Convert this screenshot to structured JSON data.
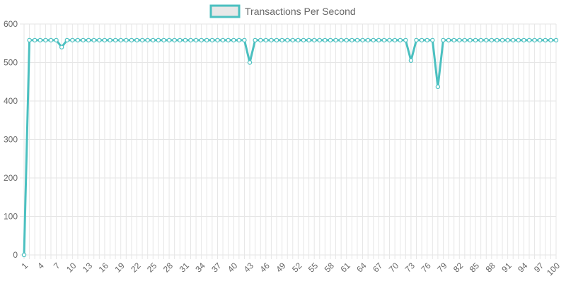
{
  "colors": {
    "line": "#4bc0c0",
    "legend_fill": "#e8e8e8",
    "grid": "#e6e6e6",
    "text": "#666666"
  },
  "chart_data": {
    "type": "line",
    "title": "",
    "xlabel": "",
    "ylabel": "",
    "x": [
      1,
      2,
      3,
      4,
      5,
      6,
      7,
      8,
      9,
      10,
      11,
      12,
      13,
      14,
      15,
      16,
      17,
      18,
      19,
      20,
      21,
      22,
      23,
      24,
      25,
      26,
      27,
      28,
      29,
      30,
      31,
      32,
      33,
      34,
      35,
      36,
      37,
      38,
      39,
      40,
      41,
      42,
      43,
      44,
      45,
      46,
      47,
      48,
      49,
      50,
      51,
      52,
      53,
      54,
      55,
      56,
      57,
      58,
      59,
      60,
      61,
      62,
      63,
      64,
      65,
      66,
      67,
      68,
      69,
      70,
      71,
      72,
      73,
      74,
      75,
      76,
      77,
      78,
      79,
      80,
      81,
      82,
      83,
      84,
      85,
      86,
      87,
      88,
      89,
      90,
      91,
      92,
      93,
      94,
      95,
      96,
      97,
      98,
      99,
      100
    ],
    "x_tick_labels": [
      "1",
      "4",
      "7",
      "10",
      "13",
      "16",
      "19",
      "22",
      "25",
      "28",
      "31",
      "34",
      "37",
      "40",
      "43",
      "46",
      "49",
      "52",
      "55",
      "58",
      "61",
      "64",
      "67",
      "70",
      "73",
      "76",
      "79",
      "82",
      "85",
      "88",
      "91",
      "94",
      "97",
      "100"
    ],
    "ylim": [
      0,
      600
    ],
    "y_ticks": [
      0,
      100,
      200,
      300,
      400,
      500,
      600
    ],
    "grid": true,
    "legend_position": "top",
    "series": [
      {
        "name": "Transactions Per Second",
        "values": [
          0,
          558,
          558,
          558,
          558,
          558,
          558,
          540,
          558,
          558,
          558,
          558,
          558,
          558,
          558,
          558,
          558,
          558,
          558,
          558,
          558,
          558,
          558,
          558,
          558,
          558,
          558,
          558,
          558,
          558,
          558,
          558,
          558,
          558,
          558,
          558,
          558,
          558,
          558,
          558,
          558,
          558,
          500,
          558,
          558,
          558,
          558,
          558,
          558,
          558,
          558,
          558,
          558,
          558,
          558,
          558,
          558,
          558,
          558,
          558,
          558,
          558,
          558,
          558,
          558,
          558,
          558,
          558,
          558,
          558,
          558,
          558,
          505,
          558,
          558,
          558,
          558,
          437,
          558,
          558,
          558,
          558,
          558,
          558,
          558,
          558,
          558,
          558,
          558,
          558,
          558,
          558,
          558,
          558,
          558,
          558,
          558,
          558,
          558,
          558
        ]
      }
    ]
  }
}
